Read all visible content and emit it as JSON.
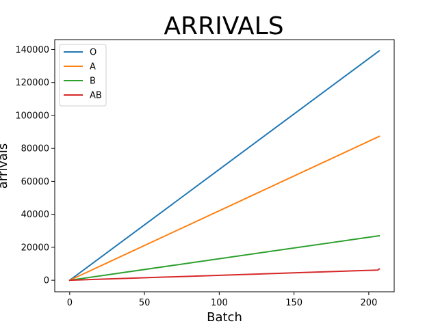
{
  "chart_data": {
    "type": "line",
    "title": "ARRIVALS",
    "xlabel": "Batch",
    "ylabel": "arrivals",
    "xlim": [
      -10,
      217
    ],
    "ylim": [
      -7000,
      146000
    ],
    "xticks": [
      0,
      50,
      100,
      150,
      200
    ],
    "yticks": [
      0,
      20000,
      40000,
      60000,
      80000,
      100000,
      120000,
      140000
    ],
    "grid": false,
    "legend_position": "top-left",
    "series": [
      {
        "name": "O",
        "color": "#1f77b4",
        "x": [
          0,
          207
        ],
        "y": [
          0,
          139200
        ]
      },
      {
        "name": "A",
        "color": "#ff7f0e",
        "x": [
          0,
          207
        ],
        "y": [
          0,
          87300
        ]
      },
      {
        "name": "B",
        "color": "#2ca02c",
        "x": [
          0,
          207
        ],
        "y": [
          0,
          27000
        ]
      },
      {
        "name": "AB",
        "color": "#d62728",
        "x": [
          0,
          206,
          207
        ],
        "y": [
          0,
          6200,
          6800
        ]
      }
    ]
  }
}
